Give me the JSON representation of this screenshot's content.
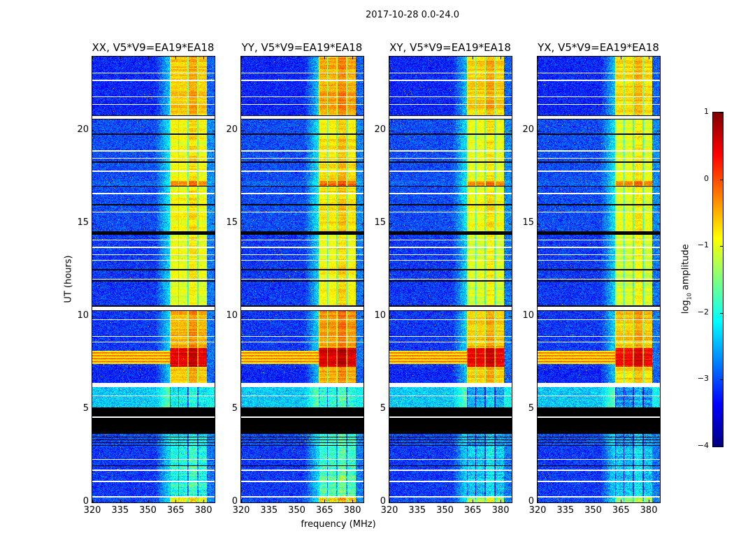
{
  "chart_data": {
    "type": "heatmap",
    "title": "2017-10-28 0.0-24.0",
    "xlabel": "frequency (MHz)",
    "ylabel": "UT (hours)",
    "xlim": [
      320,
      386
    ],
    "ylim": [
      0,
      24
    ],
    "xticks": [
      320,
      335,
      350,
      365,
      380
    ],
    "yticks": [
      0,
      5,
      10,
      15,
      20
    ],
    "panels": [
      {
        "title": "XX, V5*V9=EA19*EA18",
        "band_offset": 0.0,
        "low_band_offset": 0.0
      },
      {
        "title": "YY, V5*V9=EA19*EA18",
        "band_offset": 0.15,
        "low_band_offset": 0.1
      },
      {
        "title": "XY, V5*V9=EA19*EA18",
        "band_offset": -0.05,
        "low_band_offset": -0.3
      },
      {
        "title": "YX, V5*V9=EA19*EA18",
        "band_offset": -0.1,
        "low_band_offset": -0.3
      }
    ],
    "colorbar": {
      "label_main": "log",
      "label_sub": "10",
      "label_rest": " amplitude",
      "range": [
        -4,
        1
      ],
      "ticks": [
        1,
        0,
        -1,
        -2,
        -3,
        -4
      ],
      "tick_labels": [
        "1",
        "0",
        "−1",
        "−2",
        "−3",
        "−4"
      ],
      "colormap": "jet"
    },
    "band_MHz": [
      361.7,
      382.0
    ],
    "subband_edges_MHz": [
      361.7,
      366.6,
      371.8,
      377.0,
      382.0
    ],
    "time_segments": [
      {
        "t0": 0.0,
        "t1": 0.25,
        "band": -0.9,
        "bg": -3.0
      },
      {
        "t0": 0.25,
        "t1": 3.0,
        "band": -2.0,
        "bg": -3.1
      },
      {
        "t0": 3.0,
        "t1": 3.7,
        "band": -2.2,
        "bg": -3.0
      },
      {
        "t0": 5.1,
        "t1": 6.2,
        "band": -2.2,
        "bg": -2.4
      },
      {
        "t0": 6.4,
        "t1": 7.3,
        "band": -0.6,
        "bg": -3.2
      },
      {
        "t0": 7.3,
        "t1": 8.3,
        "band": 0.45,
        "bg": -3.1
      },
      {
        "t0": 8.3,
        "t1": 10.3,
        "band": -0.5,
        "bg": -3.1
      },
      {
        "t0": 10.6,
        "t1": 14.4,
        "band": -1.0,
        "bg": -3.1
      },
      {
        "t0": 14.6,
        "t1": 17.0,
        "band": -0.9,
        "bg": -3.0
      },
      {
        "t0": 17.0,
        "t1": 17.3,
        "band": -0.3,
        "bg": -2.9
      },
      {
        "t0": 17.3,
        "t1": 20.6,
        "band": -0.9,
        "bg": -3.0
      },
      {
        "t0": 20.8,
        "t1": 24.0,
        "band": -0.6,
        "bg": -3.2
      }
    ],
    "broadband_rfi": {
      "t0": 7.45,
      "t1": 8.15,
      "level": -0.5
    },
    "flagged_black_hours": [
      [
        3.7,
        5.1
      ],
      [
        3.05,
        3.1
      ],
      [
        3.2,
        3.25
      ],
      [
        3.35,
        3.4
      ],
      [
        3.5,
        3.55
      ],
      [
        10.3,
        10.35
      ],
      [
        10.55,
        10.6
      ],
      [
        14.4,
        14.45
      ],
      [
        14.55,
        14.6
      ],
      [
        17.0,
        17.05
      ],
      [
        20.6,
        20.65
      ],
      [
        20.8,
        20.85
      ],
      [
        12.5,
        12.55
      ],
      [
        11.9,
        11.95
      ],
      [
        18.3,
        18.35
      ],
      [
        19.8,
        19.85
      ],
      [
        16.0,
        16.05
      ],
      [
        1.95,
        2.0
      ]
    ],
    "flagged_white_hours": [
      [
        4.55,
        4.62
      ],
      [
        6.2,
        6.42
      ],
      [
        10.35,
        10.55
      ],
      [
        20.65,
        20.8
      ],
      [
        0.25,
        0.32
      ],
      [
        1.1,
        1.15
      ],
      [
        1.7,
        1.75
      ],
      [
        2.3,
        2.35
      ],
      [
        5.7,
        5.75
      ],
      [
        8.6,
        8.65
      ],
      [
        8.9,
        8.95
      ],
      [
        9.8,
        9.85
      ],
      [
        12.0,
        12.05
      ],
      [
        13.0,
        13.05
      ],
      [
        13.3,
        13.35
      ],
      [
        13.7,
        13.75
      ],
      [
        14.1,
        14.15
      ],
      [
        15.6,
        15.65
      ],
      [
        16.6,
        16.65
      ],
      [
        17.8,
        17.85
      ],
      [
        18.5,
        18.55
      ],
      [
        18.9,
        18.95
      ],
      [
        21.4,
        21.45
      ],
      [
        21.8,
        21.85
      ],
      [
        22.7,
        22.75
      ],
      [
        23.1,
        23.15
      ]
    ]
  }
}
